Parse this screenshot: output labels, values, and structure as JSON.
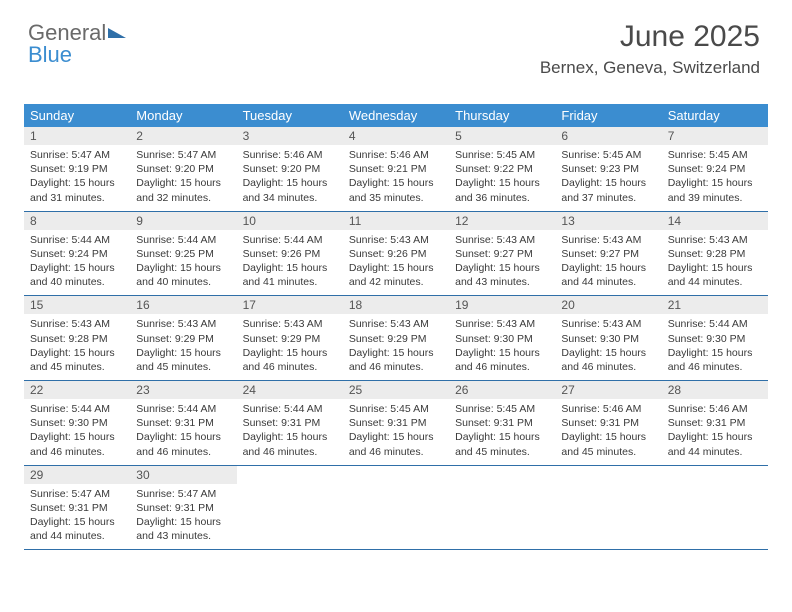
{
  "logo": {
    "text1": "General",
    "text2": "Blue"
  },
  "title": "June 2025",
  "location": "Bernex, Geneva, Switzerland",
  "colors": {
    "header_bg": "#3b8dd0",
    "header_text": "#ffffff",
    "daynum_bg": "#ececec",
    "week_border": "#2f6fa8",
    "body_text": "#3a3a3a"
  },
  "weekdays": [
    "Sunday",
    "Monday",
    "Tuesday",
    "Wednesday",
    "Thursday",
    "Friday",
    "Saturday"
  ],
  "weeks": [
    [
      {
        "n": "1",
        "sr": "5:47 AM",
        "ss": "9:19 PM",
        "dl": "15 hours and 31 minutes."
      },
      {
        "n": "2",
        "sr": "5:47 AM",
        "ss": "9:20 PM",
        "dl": "15 hours and 32 minutes."
      },
      {
        "n": "3",
        "sr": "5:46 AM",
        "ss": "9:20 PM",
        "dl": "15 hours and 34 minutes."
      },
      {
        "n": "4",
        "sr": "5:46 AM",
        "ss": "9:21 PM",
        "dl": "15 hours and 35 minutes."
      },
      {
        "n": "5",
        "sr": "5:45 AM",
        "ss": "9:22 PM",
        "dl": "15 hours and 36 minutes."
      },
      {
        "n": "6",
        "sr": "5:45 AM",
        "ss": "9:23 PM",
        "dl": "15 hours and 37 minutes."
      },
      {
        "n": "7",
        "sr": "5:45 AM",
        "ss": "9:24 PM",
        "dl": "15 hours and 39 minutes."
      }
    ],
    [
      {
        "n": "8",
        "sr": "5:44 AM",
        "ss": "9:24 PM",
        "dl": "15 hours and 40 minutes."
      },
      {
        "n": "9",
        "sr": "5:44 AM",
        "ss": "9:25 PM",
        "dl": "15 hours and 40 minutes."
      },
      {
        "n": "10",
        "sr": "5:44 AM",
        "ss": "9:26 PM",
        "dl": "15 hours and 41 minutes."
      },
      {
        "n": "11",
        "sr": "5:43 AM",
        "ss": "9:26 PM",
        "dl": "15 hours and 42 minutes."
      },
      {
        "n": "12",
        "sr": "5:43 AM",
        "ss": "9:27 PM",
        "dl": "15 hours and 43 minutes."
      },
      {
        "n": "13",
        "sr": "5:43 AM",
        "ss": "9:27 PM",
        "dl": "15 hours and 44 minutes."
      },
      {
        "n": "14",
        "sr": "5:43 AM",
        "ss": "9:28 PM",
        "dl": "15 hours and 44 minutes."
      }
    ],
    [
      {
        "n": "15",
        "sr": "5:43 AM",
        "ss": "9:28 PM",
        "dl": "15 hours and 45 minutes."
      },
      {
        "n": "16",
        "sr": "5:43 AM",
        "ss": "9:29 PM",
        "dl": "15 hours and 45 minutes."
      },
      {
        "n": "17",
        "sr": "5:43 AM",
        "ss": "9:29 PM",
        "dl": "15 hours and 46 minutes."
      },
      {
        "n": "18",
        "sr": "5:43 AM",
        "ss": "9:29 PM",
        "dl": "15 hours and 46 minutes."
      },
      {
        "n": "19",
        "sr": "5:43 AM",
        "ss": "9:30 PM",
        "dl": "15 hours and 46 minutes."
      },
      {
        "n": "20",
        "sr": "5:43 AM",
        "ss": "9:30 PM",
        "dl": "15 hours and 46 minutes."
      },
      {
        "n": "21",
        "sr": "5:44 AM",
        "ss": "9:30 PM",
        "dl": "15 hours and 46 minutes."
      }
    ],
    [
      {
        "n": "22",
        "sr": "5:44 AM",
        "ss": "9:30 PM",
        "dl": "15 hours and 46 minutes."
      },
      {
        "n": "23",
        "sr": "5:44 AM",
        "ss": "9:31 PM",
        "dl": "15 hours and 46 minutes."
      },
      {
        "n": "24",
        "sr": "5:44 AM",
        "ss": "9:31 PM",
        "dl": "15 hours and 46 minutes."
      },
      {
        "n": "25",
        "sr": "5:45 AM",
        "ss": "9:31 PM",
        "dl": "15 hours and 46 minutes."
      },
      {
        "n": "26",
        "sr": "5:45 AM",
        "ss": "9:31 PM",
        "dl": "15 hours and 45 minutes."
      },
      {
        "n": "27",
        "sr": "5:46 AM",
        "ss": "9:31 PM",
        "dl": "15 hours and 45 minutes."
      },
      {
        "n": "28",
        "sr": "5:46 AM",
        "ss": "9:31 PM",
        "dl": "15 hours and 44 minutes."
      }
    ],
    [
      {
        "n": "29",
        "sr": "5:47 AM",
        "ss": "9:31 PM",
        "dl": "15 hours and 44 minutes."
      },
      {
        "n": "30",
        "sr": "5:47 AM",
        "ss": "9:31 PM",
        "dl": "15 hours and 43 minutes."
      },
      null,
      null,
      null,
      null,
      null
    ]
  ],
  "labels": {
    "sunrise": "Sunrise:",
    "sunset": "Sunset:",
    "daylight": "Daylight:"
  }
}
